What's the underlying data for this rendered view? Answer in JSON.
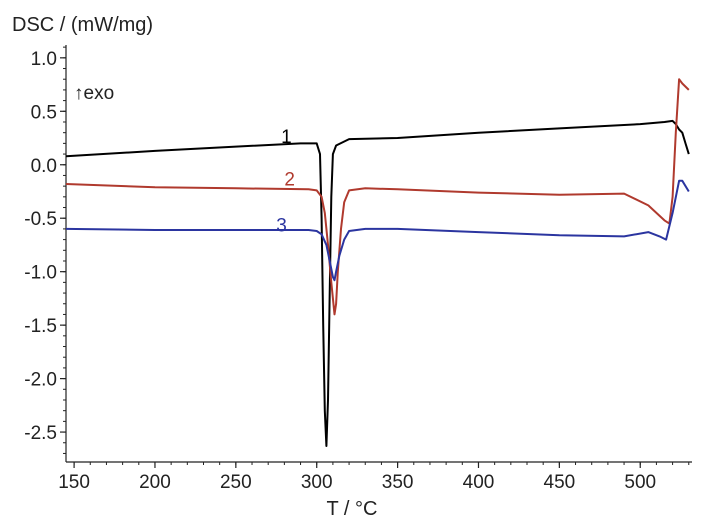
{
  "chart_data": {
    "type": "line",
    "title": "",
    "ylabel": "DSC / (mW/mg)",
    "xlabel": "T / °C",
    "annotation": "↑exo",
    "xlim": [
      145,
      532
    ],
    "ylim": [
      -2.78,
      1.12
    ],
    "x_ticks": [
      150,
      200,
      250,
      300,
      350,
      400,
      450,
      500
    ],
    "y_ticks": [
      1.0,
      0.5,
      0.0,
      -0.5,
      -1.0,
      -1.5,
      -2.0,
      -2.5
    ],
    "grid": false,
    "series": [
      {
        "name": "1",
        "color": "#000000",
        "label_at": [
          278,
          0.27
        ],
        "points": [
          [
            145,
            0.08
          ],
          [
            200,
            0.13
          ],
          [
            250,
            0.17
          ],
          [
            290,
            0.2
          ],
          [
            300,
            0.2
          ],
          [
            302,
            0.1
          ],
          [
            303,
            -0.5
          ],
          [
            304,
            -1.5
          ],
          [
            305,
            -2.3
          ],
          [
            306,
            -2.63
          ],
          [
            307,
            -2.2
          ],
          [
            308,
            -1.2
          ],
          [
            309,
            -0.3
          ],
          [
            310,
            0.1
          ],
          [
            312,
            0.18
          ],
          [
            320,
            0.24
          ],
          [
            350,
            0.25
          ],
          [
            400,
            0.3
          ],
          [
            450,
            0.34
          ],
          [
            500,
            0.38
          ],
          [
            515,
            0.4
          ],
          [
            520,
            0.41
          ],
          [
            522,
            0.38
          ],
          [
            524,
            0.33
          ],
          [
            526,
            0.3
          ],
          [
            528,
            0.2
          ],
          [
            530,
            0.1
          ]
        ]
      },
      {
        "name": "2",
        "color": "#b03a2e",
        "label_at": [
          280,
          -0.13
        ],
        "points": [
          [
            145,
            -0.18
          ],
          [
            200,
            -0.21
          ],
          [
            250,
            -0.22
          ],
          [
            295,
            -0.23
          ],
          [
            300,
            -0.24
          ],
          [
            303,
            -0.3
          ],
          [
            305,
            -0.45
          ],
          [
            307,
            -0.75
          ],
          [
            309,
            -1.1
          ],
          [
            311,
            -1.4
          ],
          [
            312,
            -1.3
          ],
          [
            313,
            -1.0
          ],
          [
            315,
            -0.6
          ],
          [
            317,
            -0.35
          ],
          [
            320,
            -0.24
          ],
          [
            330,
            -0.22
          ],
          [
            350,
            -0.23
          ],
          [
            400,
            -0.26
          ],
          [
            450,
            -0.28
          ],
          [
            490,
            -0.27
          ],
          [
            505,
            -0.38
          ],
          [
            515,
            -0.52
          ],
          [
            518,
            -0.55
          ],
          [
            520,
            -0.3
          ],
          [
            522,
            0.3
          ],
          [
            524,
            0.8
          ],
          [
            526,
            0.76
          ],
          [
            530,
            0.7
          ]
        ]
      },
      {
        "name": "3",
        "color": "#2b35a0",
        "label_at": [
          275,
          -0.56
        ],
        "points": [
          [
            145,
            -0.6
          ],
          [
            200,
            -0.61
          ],
          [
            250,
            -0.61
          ],
          [
            295,
            -0.61
          ],
          [
            300,
            -0.62
          ],
          [
            303,
            -0.65
          ],
          [
            306,
            -0.75
          ],
          [
            308,
            -0.9
          ],
          [
            310,
            -1.05
          ],
          [
            311,
            -1.08
          ],
          [
            312,
            -1.0
          ],
          [
            314,
            -0.85
          ],
          [
            317,
            -0.7
          ],
          [
            320,
            -0.62
          ],
          [
            330,
            -0.6
          ],
          [
            350,
            -0.6
          ],
          [
            400,
            -0.63
          ],
          [
            450,
            -0.66
          ],
          [
            490,
            -0.67
          ],
          [
            505,
            -0.63
          ],
          [
            512,
            -0.67
          ],
          [
            516,
            -0.7
          ],
          [
            520,
            -0.45
          ],
          [
            524,
            -0.15
          ],
          [
            526,
            -0.15
          ],
          [
            530,
            -0.25
          ]
        ]
      }
    ]
  }
}
